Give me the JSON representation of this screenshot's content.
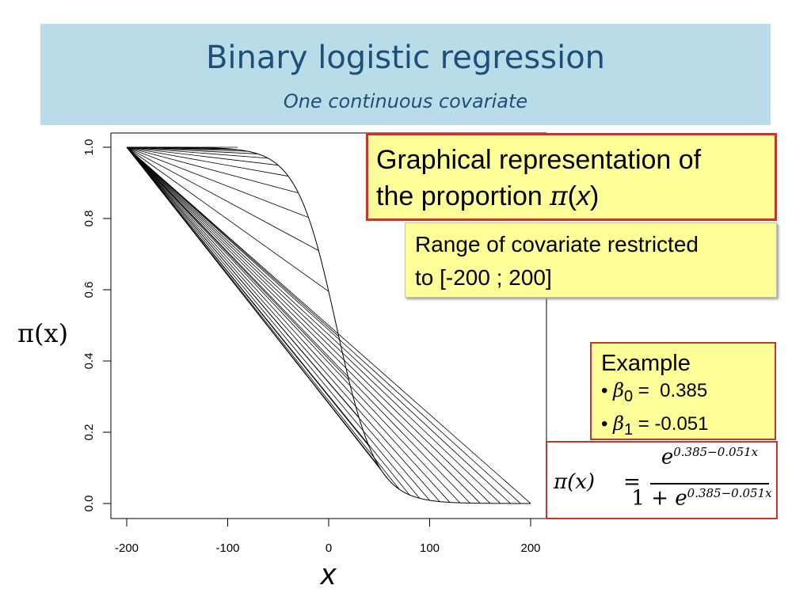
{
  "slide": {
    "title": "Binary logistic regression",
    "subtitle": "One continuous covariate"
  },
  "chart_data": {
    "type": "line",
    "ylabel": "π(x)",
    "xlabel": "x",
    "xlim": [
      -200,
      200
    ],
    "ylim": [
      0,
      1
    ],
    "xticks": [
      -200,
      -100,
      0,
      100,
      200
    ],
    "yticks": [
      0.0,
      0.2,
      0.4,
      0.6,
      0.8,
      1.0
    ],
    "x_tick_labels": [
      "-200",
      "-100",
      "0",
      "100",
      "200"
    ],
    "y_tick_labels": [
      "0.0",
      "0.2",
      "0.4",
      "0.6",
      "0.8",
      "1.0"
    ],
    "curve_params": {
      "beta0": 0.385,
      "beta1": -0.051
    },
    "x_samples": [
      -200,
      -190,
      -180,
      -170,
      -160,
      -150,
      -140,
      -130,
      -120,
      -110,
      -100,
      -90,
      -80,
      -70,
      -60,
      -50,
      -40,
      -30,
      -20,
      -10,
      0,
      10,
      20,
      30,
      40,
      50,
      60,
      70,
      80,
      90,
      100,
      110,
      120,
      130,
      140,
      150,
      160,
      170,
      180,
      190,
      200
    ],
    "grid": false,
    "legend": "none"
  },
  "annotations": {
    "graph_box": {
      "line1": "Graphical representation of",
      "line2_prefix": "the proportion ",
      "pi": "π",
      "paren_open": "(",
      "x": "x",
      "paren_close": ")"
    },
    "range_box": {
      "line1": "Range of covariate restricted",
      "line2": "to [-200 ; 200]"
    },
    "example_box": {
      "heading": "Example",
      "bullet": "•",
      "beta": "β",
      "sub0": "0",
      "sub1": "1",
      "eq": "=",
      "beta0_value": "0.385",
      "beta1_value": "-0.051"
    },
    "formula": {
      "lhs": "π(x)",
      "equals": "=",
      "e": "e",
      "exponent": "0.385−0.051x",
      "one_plus": "1 + "
    }
  }
}
